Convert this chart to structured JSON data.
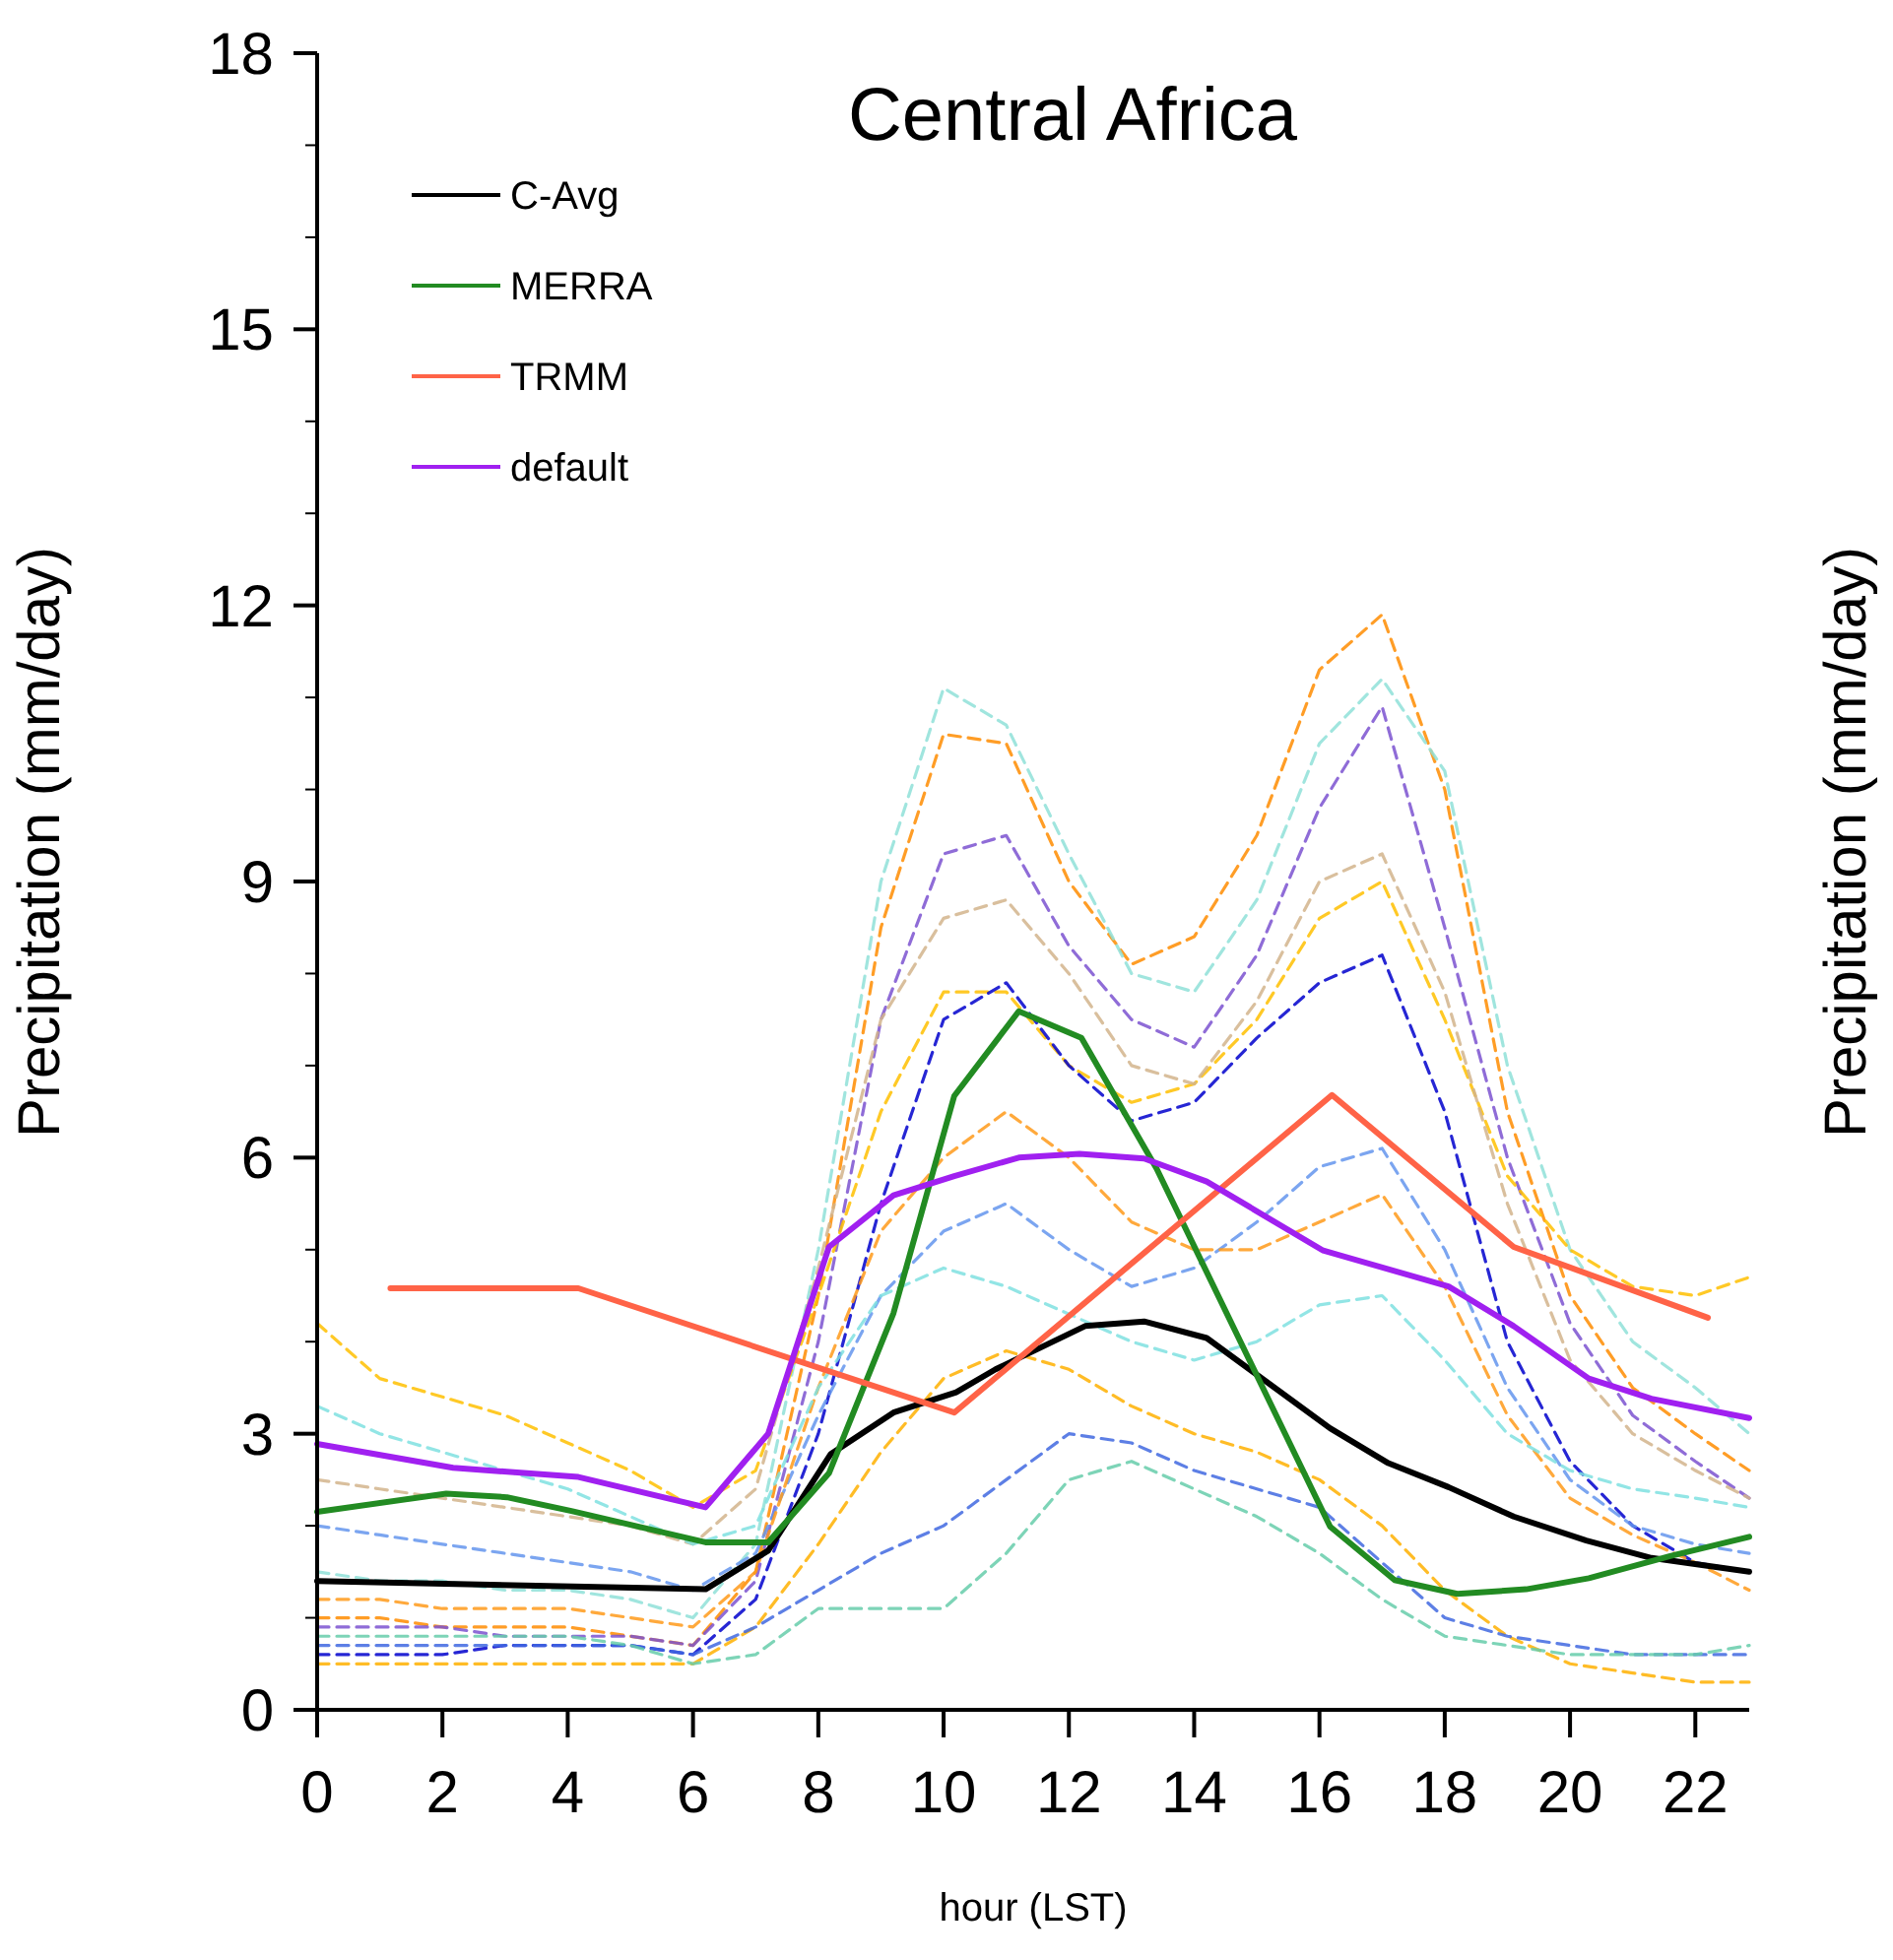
{
  "chart_data": {
    "type": "line",
    "title": "Central Africa",
    "xlabel": "hour (LST)",
    "ylabel": "Precipitation (mm/day)",
    "y2label": "Precipitation (mm/day)",
    "xlim": [
      0,
      22.86
    ],
    "xticks": [
      0,
      2,
      4,
      6,
      8,
      10,
      12,
      14,
      16,
      18,
      20,
      22
    ],
    "ylim": [
      0,
      18
    ],
    "yticks": [
      0,
      {
        "value": 1,
        "label": null
      },
      {
        "value": 2,
        "label": null
      },
      3,
      {
        "value": 4,
        "label": null
      },
      {
        "value": 5,
        "label": null
      },
      6,
      {
        "value": 7,
        "label": null
      },
      {
        "value": 8,
        "label": null
      },
      9,
      {
        "value": 10,
        "label": null
      },
      {
        "value": 11,
        "label": null
      },
      12,
      {
        "value": 13,
        "label": null
      },
      {
        "value": 14,
        "label": null
      },
      15,
      {
        "value": 16,
        "label": null
      },
      {
        "value": 17,
        "label": null
      },
      18
    ],
    "x": [
      0,
      1,
      2,
      3,
      4,
      5,
      6,
      7,
      8,
      9,
      10,
      11,
      12,
      13,
      14,
      15,
      16,
      17,
      18,
      19,
      20,
      21,
      22,
      22.86
    ],
    "grid": false,
    "legend": "top left",
    "marker": "none",
    "series": [
      {
        "color": "#ff8c00",
        "line_style": "dashed",
        "values": [
          1.0,
          1.0,
          0.9,
          0.9,
          0.9,
          0.8,
          0.7,
          1.5,
          4.5,
          8.5,
          10.6,
          10.5,
          9.0,
          8.1,
          8.4,
          9.5,
          11.3,
          11.9,
          10.0,
          6.5,
          4.5,
          3.5,
          3.0,
          2.6
        ]
      },
      {
        "color": "#8fe0d8",
        "line_style": "dashed",
        "values": [
          1.5,
          1.4,
          1.4,
          1.3,
          1.3,
          1.2,
          1.0,
          1.8,
          5.0,
          9.0,
          11.1,
          10.7,
          9.3,
          8.0,
          7.8,
          8.8,
          10.5,
          11.2,
          10.2,
          7.0,
          5.0,
          4.0,
          3.5,
          3.0
        ]
      },
      {
        "color": "#7b52d0",
        "line_style": "dashed",
        "values": [
          0.9,
          0.9,
          0.9,
          0.8,
          0.8,
          0.8,
          0.7,
          1.4,
          4.0,
          7.5,
          9.3,
          9.5,
          8.3,
          7.5,
          7.2,
          8.2,
          9.8,
          10.9,
          8.5,
          6.0,
          4.2,
          3.2,
          2.7,
          2.3
        ]
      },
      {
        "color": "#ffc000",
        "line_style": "dashed",
        "values": [
          4.2,
          3.6,
          3.4,
          3.2,
          2.9,
          2.6,
          2.2,
          2.6,
          4.5,
          6.5,
          7.8,
          7.8,
          7.0,
          6.6,
          6.8,
          7.5,
          8.6,
          9.0,
          7.5,
          5.8,
          5.0,
          4.6,
          4.5,
          4.7
        ]
      },
      {
        "color": "#0000cd",
        "line_style": "dashed",
        "values": [
          0.6,
          0.6,
          0.6,
          0.7,
          0.7,
          0.7,
          0.6,
          1.2,
          3.0,
          5.5,
          7.5,
          7.9,
          7.0,
          6.4,
          6.6,
          7.3,
          7.9,
          8.2,
          6.5,
          4.0,
          2.7,
          2.0,
          1.6,
          1.5
        ]
      },
      {
        "color": "#6495ed",
        "line_style": "dashed",
        "values": [
          2.0,
          1.9,
          1.8,
          1.7,
          1.6,
          1.5,
          1.3,
          1.7,
          3.2,
          4.5,
          5.2,
          5.5,
          5.0,
          4.6,
          4.8,
          5.3,
          5.9,
          6.1,
          5.0,
          3.5,
          2.5,
          2.0,
          1.8,
          1.7
        ]
      },
      {
        "color": "#ffb000",
        "line_style": "dashed",
        "values": [
          0.5,
          0.5,
          0.5,
          0.5,
          0.5,
          0.5,
          0.5,
          0.9,
          1.8,
          2.8,
          3.6,
          3.9,
          3.7,
          3.3,
          3.0,
          2.8,
          2.5,
          2.0,
          1.3,
          0.8,
          0.5,
          0.4,
          0.3,
          0.3
        ]
      },
      {
        "color": "#4169e1",
        "line_style": "dashed",
        "values": [
          0.7,
          0.7,
          0.7,
          0.7,
          0.7,
          0.7,
          0.6,
          0.9,
          1.3,
          1.7,
          2.0,
          2.5,
          3.0,
          2.9,
          2.6,
          2.4,
          2.2,
          1.6,
          1.0,
          0.8,
          0.7,
          0.6,
          0.6,
          0.6
        ]
      },
      {
        "color": "#ff9a1a",
        "line_style": "dashed",
        "values": [
          1.2,
          1.2,
          1.1,
          1.1,
          1.1,
          1.0,
          0.9,
          1.5,
          3.5,
          5.2,
          6.0,
          6.5,
          6.0,
          5.3,
          5.0,
          5.0,
          5.3,
          5.6,
          4.6,
          3.2,
          2.3,
          1.9,
          1.6,
          1.3
        ]
      },
      {
        "color": "#d2b48c",
        "line_style": "dashed",
        "values": [
          2.5,
          2.4,
          2.3,
          2.2,
          2.1,
          2.0,
          1.8,
          2.4,
          4.8,
          7.5,
          8.6,
          8.8,
          8.0,
          7.0,
          6.8,
          7.7,
          9.0,
          9.3,
          7.8,
          5.5,
          3.8,
          3.0,
          2.6,
          2.3
        ]
      },
      {
        "color": "#7fe0e0",
        "line_style": "dashed",
        "values": [
          3.3,
          3.0,
          2.8,
          2.6,
          2.4,
          2.1,
          1.8,
          2.0,
          3.5,
          4.5,
          4.8,
          4.6,
          4.3,
          4.0,
          3.8,
          4.0,
          4.4,
          4.5,
          3.8,
          3.0,
          2.6,
          2.4,
          2.3,
          2.2
        ]
      },
      {
        "color": "#66cdaa",
        "line_style": "dashed",
        "values": [
          0.8,
          0.8,
          0.8,
          0.8,
          0.8,
          0.7,
          0.5,
          0.6,
          1.1,
          1.1,
          1.1,
          1.7,
          2.5,
          2.7,
          2.4,
          2.1,
          1.7,
          1.2,
          0.8,
          0.7,
          0.6,
          0.6,
          0.6,
          0.7
        ]
      },
      {
        "name": "C-Avg",
        "color": "#000000",
        "line_style": "solid",
        "x": [
          0,
          6.2,
          7.2,
          8.2,
          9.2,
          10.2,
          10.83,
          12.26,
          13.2,
          14.2,
          16.17,
          17.1,
          18.06,
          19.1,
          20.26,
          21.3,
          22.86
        ],
        "values": [
          1.4,
          1.31,
          1.73,
          2.78,
          3.23,
          3.45,
          3.7,
          4.17,
          4.22,
          4.04,
          3.06,
          2.68,
          2.42,
          2.1,
          1.84,
          1.65,
          1.5
        ]
      },
      {
        "name": "MERRA",
        "color": "#228b22",
        "line_style": "solid",
        "x": [
          0,
          2.06,
          3.03,
          4.06,
          6.2,
          7.2,
          8.17,
          9.2,
          10.17,
          11.2,
          12.2,
          13.4,
          16.17,
          17.2,
          18.2,
          19.3,
          20.3,
          21.6,
          22.86
        ],
        "values": [
          2.15,
          2.35,
          2.31,
          2.16,
          1.82,
          1.82,
          2.57,
          4.31,
          6.67,
          7.59,
          7.3,
          5.88,
          1.99,
          1.41,
          1.26,
          1.31,
          1.43,
          1.67,
          1.88
        ]
      },
      {
        "name": "TRMM",
        "color": "#ff6347",
        "line_style": "solid",
        "x": [
          1.17,
          4.17,
          10.17,
          16.2,
          19.1,
          22.2
        ],
        "values": [
          4.58,
          4.58,
          3.23,
          6.68,
          5.03,
          4.26
        ]
      },
      {
        "name": "default",
        "color": "#a020f0",
        "line_style": "solid",
        "x": [
          0,
          2.17,
          4.17,
          6.2,
          7.2,
          8.17,
          9.2,
          10.17,
          11.2,
          12.17,
          13.2,
          14.2,
          16.06,
          18.06,
          19.1,
          20.3,
          21.3,
          22.86
        ],
        "values": [
          2.89,
          2.63,
          2.53,
          2.2,
          3.0,
          5.03,
          5.59,
          5.8,
          6.0,
          6.04,
          5.99,
          5.74,
          4.99,
          4.6,
          4.17,
          3.6,
          3.38,
          3.17
        ]
      }
    ]
  }
}
